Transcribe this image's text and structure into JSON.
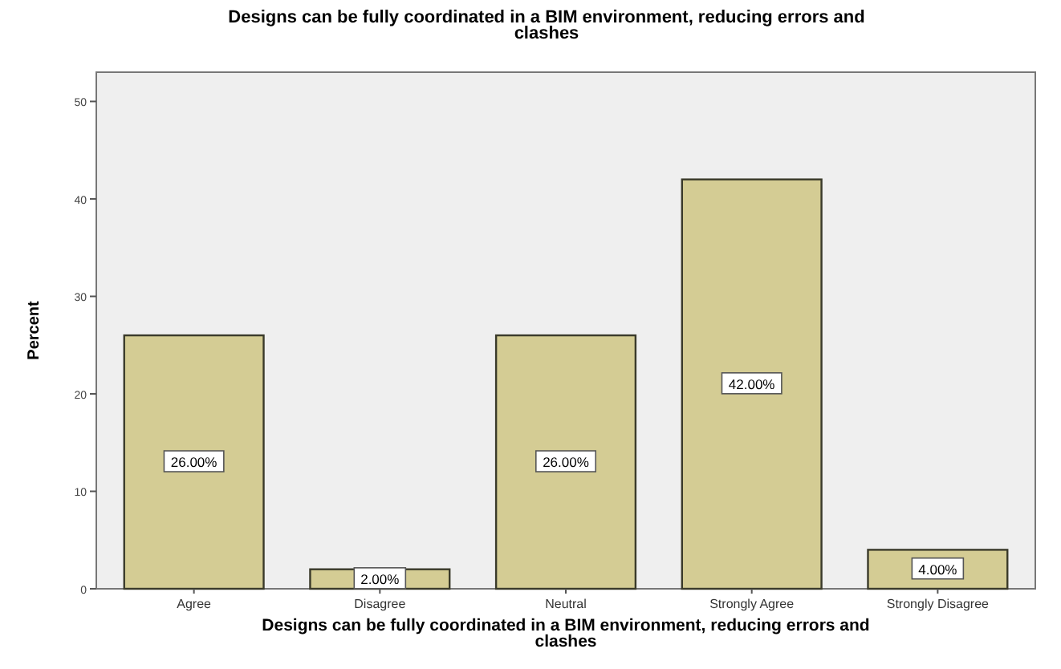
{
  "chart_data": {
    "type": "bar",
    "title": "Designs can be fully coordinated in a BIM environment, reducing errors and clashes",
    "xlabel": "Designs can be fully coordinated in a BIM environment, reducing errors and clashes",
    "ylabel": "Percent",
    "categories": [
      "Agree",
      "Disagree",
      "Neutral",
      "Strongly Agree",
      "Strongly Disagree"
    ],
    "values": [
      26,
      2,
      26,
      42,
      4
    ],
    "value_labels": [
      "26.00%",
      "2.00%",
      "26.00%",
      "42.00%",
      "4.00%"
    ],
    "color": "#d4cc94",
    "ylim": [
      0,
      53
    ],
    "yticks": [
      0,
      10,
      20,
      30,
      40,
      50
    ],
    "grid": false
  }
}
